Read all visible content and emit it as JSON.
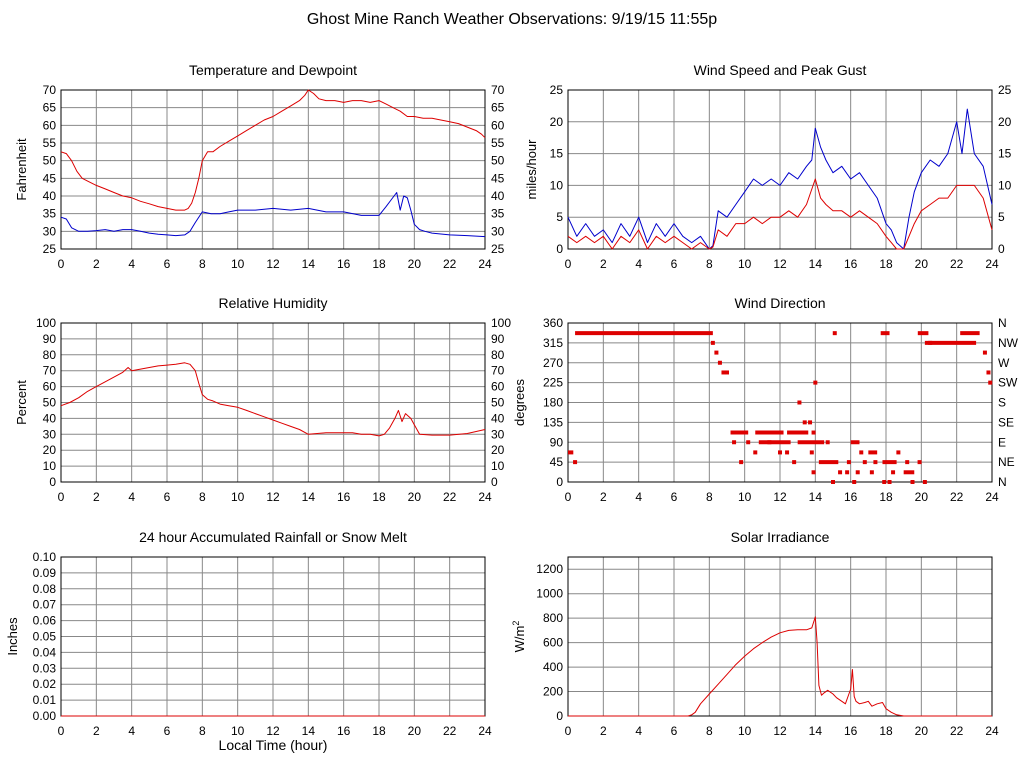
{
  "page": {
    "title": "Ghost Mine Ranch Weather Observations: 9/19/15 11:55p"
  },
  "colors": {
    "red": "#dd0000",
    "blue": "#0000cc",
    "grid": "#888888",
    "frame": "#000000"
  },
  "chart_data": [
    {
      "id": "temp",
      "type": "line",
      "title": "Temperature and Dewpoint",
      "ylabel": "Fahrenheit",
      "xlim": [
        0,
        24
      ],
      "ylim": [
        25,
        70
      ],
      "yticks": [
        25,
        30,
        35,
        40,
        45,
        50,
        55,
        60,
        65,
        70
      ],
      "xticks": [
        0,
        2,
        4,
        6,
        8,
        10,
        12,
        14,
        16,
        18,
        20,
        22,
        24
      ],
      "right_axis": true,
      "grid": true,
      "series": [
        {
          "color": "red",
          "x": [
            0,
            0.3,
            0.6,
            0.9,
            1.2,
            1.6,
            2,
            2.5,
            3,
            3.5,
            4,
            4.5,
            5,
            5.5,
            6,
            6.5,
            7,
            7.2,
            7.4,
            7.6,
            7.8,
            8,
            8.3,
            8.6,
            9,
            9.5,
            10,
            10.5,
            11,
            11.5,
            12,
            12.5,
            13,
            13.5,
            13.8,
            14,
            14.3,
            14.6,
            15,
            15.5,
            16,
            16.5,
            17,
            17.5,
            18,
            18.4,
            18.8,
            19.2,
            19.6,
            20,
            20.5,
            21,
            21.5,
            22,
            22.5,
            23,
            23.5,
            23.8,
            24
          ],
          "y": [
            52.5,
            52,
            50,
            47,
            45,
            44,
            43,
            42,
            41,
            40,
            39.5,
            38.5,
            37.8,
            37,
            36.5,
            36,
            36,
            36.5,
            38,
            41,
            45,
            50,
            52.5,
            52.5,
            54,
            55.5,
            57,
            58.5,
            60,
            61.5,
            62.5,
            64,
            65.5,
            67,
            68.5,
            70,
            69,
            67.5,
            67,
            67,
            66.5,
            67,
            67,
            66.5,
            67,
            66,
            65,
            64,
            62.5,
            62.5,
            62,
            62,
            61.5,
            61,
            60.5,
            59.5,
            58.5,
            57.5,
            56.5
          ]
        },
        {
          "color": "blue",
          "x": [
            0,
            0.3,
            0.6,
            1,
            1.5,
            2,
            2.5,
            3,
            3.5,
            4,
            4.5,
            5,
            5.5,
            6,
            6.5,
            7,
            7.3,
            7.6,
            8,
            8.5,
            9,
            9.5,
            10,
            11,
            12,
            13,
            14,
            15,
            16,
            17,
            18,
            18.4,
            18.7,
            19,
            19.2,
            19.4,
            19.6,
            19.8,
            20,
            20.3,
            20.6,
            21,
            22,
            23,
            24
          ],
          "y": [
            34,
            33.5,
            31,
            30,
            30,
            30.2,
            30.5,
            30,
            30.5,
            30.5,
            30,
            29.5,
            29.2,
            29,
            28.8,
            29,
            30,
            32.5,
            35.5,
            35,
            35,
            35.5,
            36,
            36,
            36.5,
            36,
            36.5,
            35.5,
            35.5,
            34.5,
            34.5,
            37,
            39,
            41,
            36,
            40,
            39.5,
            36,
            32,
            30.5,
            30,
            29.5,
            29,
            28.8,
            28.5
          ]
        }
      ]
    },
    {
      "id": "wind",
      "type": "line",
      "title": "Wind Speed and Peak Gust",
      "ylabel": "miles/hour",
      "xlim": [
        0,
        24
      ],
      "ylim": [
        0,
        25
      ],
      "yticks": [
        0,
        5,
        10,
        15,
        20,
        25
      ],
      "xticks": [
        0,
        2,
        4,
        6,
        8,
        10,
        12,
        14,
        16,
        18,
        20,
        22,
        24
      ],
      "right_axis": true,
      "grid": true,
      "series": [
        {
          "color": "blue",
          "x": [
            0,
            0.5,
            1,
            1.5,
            2,
            2.5,
            3,
            3.5,
            4,
            4.5,
            5,
            5.5,
            6,
            6.5,
            7,
            7.5,
            8,
            8.2,
            8.5,
            9,
            9.5,
            10,
            10.5,
            11,
            11.5,
            12,
            12.5,
            13,
            13.5,
            13.8,
            14,
            14.3,
            14.6,
            15,
            15.5,
            16,
            16.5,
            17,
            17.5,
            18,
            18.3,
            18.6,
            19,
            19.3,
            19.6,
            20,
            20.5,
            21,
            21.5,
            22,
            22.3,
            22.6,
            23,
            23.5,
            24
          ],
          "y": [
            5,
            2,
            4,
            2,
            3,
            1,
            4,
            2,
            5,
            1,
            4,
            2,
            4,
            2,
            1,
            2,
            0,
            0.5,
            6,
            5,
            7,
            9,
            11,
            10,
            11,
            10,
            12,
            11,
            13,
            14,
            19,
            16,
            14,
            12,
            13,
            11,
            12,
            10,
            8,
            4,
            3,
            1,
            0,
            5,
            9,
            12,
            14,
            13,
            15,
            20,
            15,
            22,
            15,
            13,
            7
          ]
        },
        {
          "color": "red",
          "x": [
            0,
            0.5,
            1,
            1.5,
            2,
            2.5,
            3,
            3.5,
            4,
            4.5,
            5,
            5.5,
            6,
            6.5,
            7,
            7.5,
            8,
            8.2,
            8.5,
            9,
            9.5,
            10,
            10.5,
            11,
            11.5,
            12,
            12.5,
            13,
            13.5,
            14,
            14.3,
            14.6,
            15,
            15.5,
            16,
            16.5,
            17,
            17.5,
            18,
            18.3,
            18.6,
            19,
            19.3,
            19.6,
            20,
            20.5,
            21,
            21.5,
            22,
            22.5,
            23,
            23.5,
            24
          ],
          "y": [
            2,
            1,
            2,
            1,
            2,
            0,
            2,
            1,
            3,
            0,
            2,
            1,
            2,
            1,
            0,
            1,
            0,
            0.3,
            3,
            2,
            4,
            4,
            5,
            4,
            5,
            5,
            6,
            5,
            7,
            11,
            8,
            7,
            6,
            6,
            5,
            6,
            5,
            4,
            2,
            1,
            0,
            0,
            2,
            4,
            6,
            7,
            8,
            8,
            10,
            10,
            10,
            8,
            3
          ]
        }
      ]
    },
    {
      "id": "rh",
      "type": "line",
      "title": "Relative Humidity",
      "ylabel": "Percent",
      "xlim": [
        0,
        24
      ],
      "ylim": [
        0,
        100
      ],
      "yticks": [
        0,
        10,
        20,
        30,
        40,
        50,
        60,
        70,
        80,
        90,
        100
      ],
      "xticks": [
        0,
        2,
        4,
        6,
        8,
        10,
        12,
        14,
        16,
        18,
        20,
        22,
        24
      ],
      "right_axis": true,
      "grid": true,
      "series": [
        {
          "color": "red",
          "x": [
            0,
            0.5,
            1,
            1.5,
            2,
            2.5,
            3,
            3.5,
            3.8,
            4,
            4.5,
            5,
            5.5,
            6,
            6.5,
            7,
            7.3,
            7.6,
            7.8,
            8,
            8.3,
            8.6,
            9,
            9.5,
            10,
            10.5,
            11,
            11.5,
            12,
            12.5,
            13,
            13.5,
            14,
            14.5,
            15,
            15.5,
            16,
            16.5,
            17,
            17.5,
            18,
            18.3,
            18.6,
            18.9,
            19.1,
            19.3,
            19.5,
            19.8,
            20,
            20.3,
            21,
            22,
            23,
            24
          ],
          "y": [
            48,
            50,
            53,
            57,
            60,
            63,
            66,
            69,
            72,
            70,
            71,
            72,
            73,
            73.5,
            74,
            75,
            74,
            70,
            62,
            55,
            52,
            51,
            49,
            48,
            47,
            45,
            43,
            41,
            39,
            37,
            35,
            33,
            30,
            30.5,
            31,
            31,
            31,
            31,
            30,
            30,
            29,
            30,
            34,
            40,
            45,
            38,
            43,
            40,
            36,
            30,
            29.5,
            29.5,
            30.5,
            33
          ]
        }
      ]
    },
    {
      "id": "wdir",
      "type": "scatter",
      "title": "Wind Direction",
      "ylabel": "degrees",
      "xlim": [
        0,
        24
      ],
      "ylim": [
        0,
        360
      ],
      "yticks": [
        0,
        45,
        90,
        135,
        180,
        225,
        270,
        315,
        360
      ],
      "right_labels": [
        "N",
        "NE",
        "E",
        "SE",
        "S",
        "SW",
        "W",
        "NW",
        "N"
      ],
      "xticks": [
        0,
        2,
        4,
        6,
        8,
        10,
        12,
        14,
        16,
        18,
        20,
        22,
        24
      ],
      "grid": true,
      "segments": [
        {
          "x": [
            0,
            0.3
          ],
          "y": 67
        },
        {
          "x": [
            0.4,
            8.2
          ],
          "y": 337
        },
        {
          "x": [
            9.2,
            10.2
          ],
          "y": 112
        },
        {
          "x": [
            10.6,
            12.2
          ],
          "y": 112
        },
        {
          "x": [
            12.4,
            13.6
          ],
          "y": 112
        },
        {
          "x": [
            10.8,
            12.6
          ],
          "y": 90
        },
        {
          "x": [
            13.0,
            14.5
          ],
          "y": 90
        },
        {
          "x": [
            14.2,
            15.3
          ],
          "y": 45
        },
        {
          "x": [
            16.0,
            16.5
          ],
          "y": 90
        },
        {
          "x": [
            17.0,
            17.5
          ],
          "y": 67
        },
        {
          "x": [
            17.8,
            18.6
          ],
          "y": 45
        },
        {
          "x": [
            19.0,
            19.6
          ],
          "y": 22
        },
        {
          "x": [
            17.7,
            18.2
          ],
          "y": 337
        },
        {
          "x": [
            19.8,
            20.4
          ],
          "y": 337
        },
        {
          "x": [
            20.2,
            23.1
          ],
          "y": 315
        },
        {
          "x": [
            22.2,
            23.3
          ],
          "y": 337
        }
      ],
      "points": [
        {
          "x": 0.4,
          "y": 45
        },
        {
          "x": 8.2,
          "y": 315
        },
        {
          "x": 8.4,
          "y": 293
        },
        {
          "x": 8.6,
          "y": 270
        },
        {
          "x": 8.8,
          "y": 248
        },
        {
          "x": 9.0,
          "y": 248
        },
        {
          "x": 9.4,
          "y": 90
        },
        {
          "x": 9.8,
          "y": 45
        },
        {
          "x": 10.2,
          "y": 90
        },
        {
          "x": 10.6,
          "y": 67
        },
        {
          "x": 11.4,
          "y": 90
        },
        {
          "x": 12.0,
          "y": 67
        },
        {
          "x": 12.4,
          "y": 67
        },
        {
          "x": 12.8,
          "y": 45
        },
        {
          "x": 13.1,
          "y": 180
        },
        {
          "x": 13.4,
          "y": 135
        },
        {
          "x": 13.7,
          "y": 135
        },
        {
          "x": 13.9,
          "y": 112
        },
        {
          "x": 13.8,
          "y": 67
        },
        {
          "x": 14.0,
          "y": 225
        },
        {
          "x": 13.9,
          "y": 22
        },
        {
          "x": 14.7,
          "y": 90
        },
        {
          "x": 15.1,
          "y": 337
        },
        {
          "x": 15.0,
          "y": 0
        },
        {
          "x": 15.4,
          "y": 22
        },
        {
          "x": 15.8,
          "y": 22
        },
        {
          "x": 15.9,
          "y": 45
        },
        {
          "x": 16.2,
          "y": 0
        },
        {
          "x": 16.4,
          "y": 22
        },
        {
          "x": 16.6,
          "y": 67
        },
        {
          "x": 16.8,
          "y": 45
        },
        {
          "x": 17.2,
          "y": 22
        },
        {
          "x": 17.4,
          "y": 45
        },
        {
          "x": 17.9,
          "y": 0
        },
        {
          "x": 18.2,
          "y": 0
        },
        {
          "x": 18.4,
          "y": 22
        },
        {
          "x": 18.7,
          "y": 67
        },
        {
          "x": 19.2,
          "y": 45
        },
        {
          "x": 19.5,
          "y": 0
        },
        {
          "x": 19.9,
          "y": 45
        },
        {
          "x": 20.2,
          "y": 0
        },
        {
          "x": 20.5,
          "y": 315
        },
        {
          "x": 23.6,
          "y": 293
        },
        {
          "x": 23.8,
          "y": 248
        },
        {
          "x": 23.9,
          "y": 225
        }
      ]
    },
    {
      "id": "rain",
      "type": "line",
      "title": "24 hour Accumulated Rainfall or Snow Melt",
      "ylabel": "Inches",
      "xlabel": "Local Time (hour)",
      "xlim": [
        0,
        24
      ],
      "ylim": [
        0,
        0.1
      ],
      "yticks": [
        "0.00",
        "0.01",
        "0.02",
        "0.03",
        "0.04",
        "0.05",
        "0.06",
        "0.07",
        "0.08",
        "0.09",
        "0.10"
      ],
      "xticks": [
        0,
        2,
        4,
        6,
        8,
        10,
        12,
        14,
        16,
        18,
        20,
        22,
        24
      ],
      "grid": true,
      "series": [
        {
          "color": "red",
          "x": [
            0,
            24
          ],
          "y": [
            0,
            0
          ]
        }
      ]
    },
    {
      "id": "solar",
      "type": "line",
      "title": "Solar Irradiance",
      "ylabel": "W/m",
      "ylabel_sup": "2",
      "xlim": [
        0,
        24
      ],
      "ylim": [
        0,
        1300
      ],
      "yticks": [
        0,
        200,
        400,
        600,
        800,
        1000,
        1200
      ],
      "xticks": [
        0,
        2,
        4,
        6,
        8,
        10,
        12,
        14,
        16,
        18,
        20,
        22,
        24
      ],
      "grid": true,
      "series": [
        {
          "color": "red",
          "x": [
            0,
            6.8,
            7.0,
            7.2,
            7.5,
            8,
            8.5,
            9,
            9.5,
            10,
            10.5,
            11,
            11.5,
            12,
            12.5,
            13,
            13.5,
            13.8,
            14.0,
            14.1,
            14.2,
            14.35,
            14.5,
            14.7,
            15.0,
            15.2,
            15.5,
            15.7,
            15.9,
            16.0,
            16.1,
            16.2,
            16.3,
            16.5,
            16.8,
            17.0,
            17.2,
            17.5,
            17.8,
            18.0,
            18.3,
            18.6,
            19.0,
            20,
            24
          ],
          "y": [
            0,
            0,
            10,
            30,
            100,
            180,
            260,
            340,
            420,
            490,
            550,
            600,
            645,
            680,
            700,
            705,
            705,
            720,
            810,
            600,
            250,
            170,
            190,
            210,
            180,
            150,
            120,
            100,
            180,
            220,
            380,
            160,
            120,
            100,
            110,
            120,
            80,
            100,
            110,
            60,
            30,
            10,
            0,
            0,
            0
          ]
        }
      ]
    }
  ]
}
